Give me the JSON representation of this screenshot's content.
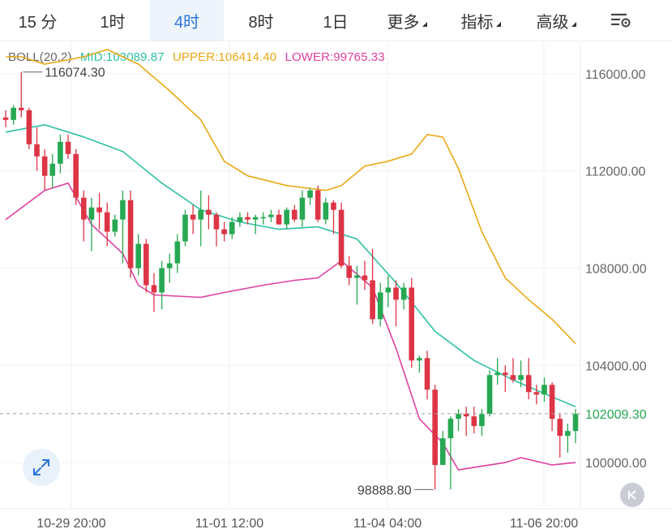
{
  "toolbar": {
    "tabs": [
      {
        "label": "15 分",
        "active": false
      },
      {
        "label": "1时",
        "active": false
      },
      {
        "label": "4时",
        "active": true
      },
      {
        "label": "8时",
        "active": false
      },
      {
        "label": "1日",
        "active": false
      },
      {
        "label": "更多",
        "active": false,
        "dropdown": true
      },
      {
        "label": "指标",
        "active": false,
        "dropdown": true
      },
      {
        "label": "高级",
        "active": false,
        "dropdown": true
      }
    ],
    "settings_icon": "chart-settings-icon"
  },
  "indicator": {
    "name": "BOLL(20,2)",
    "mid": "MID:103089.87",
    "upper": "UPPER:106414.40",
    "lower": "LOWER:99765.33"
  },
  "colors": {
    "up": "#27a852",
    "down": "#dc3545",
    "mid": "#2dc1a4",
    "upper": "#eaa913",
    "lower": "#e040a0",
    "accent": "#2b73d9",
    "current_price": "#27a852"
  },
  "chart_data": {
    "type": "candlestick",
    "ylim": [
      98100,
      117300
    ],
    "y_ticks": [
      "116000.00",
      "112000.00",
      "108000.00",
      "104000.00",
      "100000.00"
    ],
    "x_ticks": [
      "10-29 20:00",
      "11-01 12:00",
      "11-04 04:00",
      "11-06 20:00"
    ],
    "current_price": {
      "value": 102009.3,
      "label": "102009.30"
    },
    "high_annotation": {
      "label": "116074.30",
      "value": 116074.3
    },
    "low_annotation": {
      "label": "98888.80",
      "value": 98888.8
    },
    "candles": [
      [
        114200,
        114500,
        113800,
        114100
      ],
      [
        114100,
        114700,
        113900,
        114600
      ],
      [
        114600,
        116074,
        114200,
        114500
      ],
      [
        114500,
        114600,
        112900,
        113100
      ],
      [
        113100,
        113800,
        112000,
        112600
      ],
      [
        112600,
        112900,
        111200,
        111800
      ],
      [
        111800,
        112700,
        111300,
        112300
      ],
      [
        112300,
        113500,
        111900,
        113200
      ],
      [
        113200,
        113500,
        112500,
        112700
      ],
      [
        112700,
        112900,
        110600,
        110900
      ],
      [
        110900,
        111200,
        109100,
        110000
      ],
      [
        110000,
        110900,
        108700,
        110500
      ],
      [
        110500,
        111100,
        109600,
        110300
      ],
      [
        110300,
        110700,
        108900,
        109500
      ],
      [
        109500,
        110200,
        109300,
        110000
      ],
      [
        110000,
        111200,
        108200,
        110800
      ],
      [
        110800,
        111200,
        107600,
        108000
      ],
      [
        108000,
        109400,
        107700,
        109000
      ],
      [
        109000,
        109200,
        107000,
        107300
      ],
      [
        107300,
        107800,
        106200,
        107000
      ],
      [
        107000,
        108300,
        106300,
        108000
      ],
      [
        108000,
        108600,
        107400,
        108200
      ],
      [
        108200,
        109400,
        107800,
        109100
      ],
      [
        109100,
        110400,
        108900,
        110200
      ],
      [
        110200,
        110600,
        109400,
        110000
      ],
      [
        110000,
        111200,
        108900,
        110400
      ],
      [
        110400,
        111000,
        109600,
        110200
      ],
      [
        110200,
        110300,
        108900,
        109600
      ],
      [
        109600,
        109900,
        109100,
        109400
      ],
      [
        109400,
        110100,
        109200,
        109900
      ],
      [
        109900,
        110300,
        109700,
        110100
      ],
      [
        110100,
        110300,
        109800,
        110000
      ],
      [
        110000,
        110200,
        109400,
        110100
      ],
      [
        110100,
        110300,
        109800,
        110100
      ],
      [
        110100,
        110400,
        109900,
        110200
      ],
      [
        110200,
        110400,
        109800,
        109800
      ],
      [
        109800,
        110500,
        109600,
        110400
      ],
      [
        110400,
        110600,
        109900,
        110000
      ],
      [
        110000,
        111200,
        109700,
        110900
      ],
      [
        110900,
        111300,
        110600,
        111200
      ],
      [
        111200,
        111400,
        109900,
        110000
      ],
      [
        110000,
        110900,
        109800,
        110700
      ],
      [
        110700,
        110800,
        109400,
        110400
      ],
      [
        110400,
        110700,
        108000,
        108100
      ],
      [
        108100,
        108500,
        107300,
        107600
      ],
      [
        107600,
        108100,
        106500,
        107700
      ],
      [
        107700,
        108300,
        107100,
        107500
      ],
      [
        107500,
        108800,
        105700,
        105900
      ],
      [
        105900,
        107400,
        105600,
        107000
      ],
      [
        107000,
        107700,
        106400,
        107200
      ],
      [
        107200,
        107500,
        105600,
        106700
      ],
      [
        106700,
        107400,
        106300,
        107200
      ],
      [
        107200,
        107600,
        103900,
        104200
      ],
      [
        104200,
        104400,
        103700,
        104300
      ],
      [
        104300,
        104600,
        102600,
        103000
      ],
      [
        103000,
        103200,
        98889,
        99900
      ],
      [
        99900,
        101300,
        99900,
        101000
      ],
      [
        101000,
        101900,
        98900,
        101800
      ],
      [
        101800,
        102200,
        101300,
        102000
      ],
      [
        102000,
        102300,
        101100,
        101900
      ],
      [
        101900,
        102300,
        101200,
        101500
      ],
      [
        101500,
        102200,
        101100,
        102000
      ],
      [
        102000,
        103800,
        101900,
        103600
      ],
      [
        103600,
        104300,
        103200,
        103700
      ],
      [
        103700,
        104000,
        102900,
        103600
      ],
      [
        103600,
        104300,
        103300,
        103400
      ],
      [
        103400,
        104200,
        103100,
        103600
      ],
      [
        103600,
        104300,
        102600,
        102900
      ],
      [
        102900,
        103200,
        102400,
        102800
      ],
      [
        102800,
        103500,
        102500,
        103200
      ],
      [
        103200,
        103300,
        101300,
        101800
      ],
      [
        101800,
        102000,
        100200,
        101100
      ],
      [
        101100,
        101600,
        100400,
        101300
      ],
      [
        101300,
        102200,
        100800,
        102000
      ]
    ],
    "bands": {
      "mid": [
        [
          0,
          113600
        ],
        [
          5,
          113900
        ],
        [
          10,
          113400
        ],
        [
          15,
          112800
        ],
        [
          20,
          111500
        ],
        [
          25,
          110400
        ],
        [
          30,
          109900
        ],
        [
          35,
          109600
        ],
        [
          40,
          109700
        ],
        [
          45,
          109200
        ],
        [
          50,
          107400
        ],
        [
          55,
          105400
        ],
        [
          60,
          104200
        ],
        [
          65,
          103400
        ],
        [
          70,
          102700
        ],
        [
          73,
          102300
        ]
      ],
      "upper": [
        [
          0,
          116700
        ],
        [
          2,
          116700
        ],
        [
          5,
          116400
        ],
        [
          10,
          116700
        ],
        [
          13,
          117000
        ],
        [
          17,
          116400
        ],
        [
          21,
          115300
        ],
        [
          25,
          114100
        ],
        [
          28,
          112400
        ],
        [
          31,
          111800
        ],
        [
          36,
          111400
        ],
        [
          41,
          111200
        ],
        [
          43,
          111400
        ],
        [
          46,
          112200
        ],
        [
          49,
          112400
        ],
        [
          52,
          112700
        ],
        [
          54,
          113500
        ],
        [
          56,
          113400
        ],
        [
          58,
          112100
        ],
        [
          61,
          109500
        ],
        [
          64,
          107600
        ],
        [
          67,
          106700
        ],
        [
          70,
          105900
        ],
        [
          73,
          104900
        ]
      ],
      "lower": [
        [
          0,
          110000
        ],
        [
          5,
          111200
        ],
        [
          8,
          111500
        ],
        [
          11,
          109800
        ],
        [
          15,
          108600
        ],
        [
          17,
          107300
        ],
        [
          19,
          106900
        ],
        [
          25,
          106800
        ],
        [
          28,
          107000
        ],
        [
          33,
          107300
        ],
        [
          37,
          107500
        ],
        [
          40,
          107600
        ],
        [
          43,
          108300
        ],
        [
          47,
          107200
        ],
        [
          50,
          104700
        ],
        [
          53,
          101800
        ],
        [
          56,
          100800
        ],
        [
          58,
          99700
        ],
        [
          60,
          99800
        ],
        [
          64,
          100000
        ],
        [
          66,
          100200
        ],
        [
          70,
          99900
        ],
        [
          73,
          100000
        ]
      ]
    }
  }
}
